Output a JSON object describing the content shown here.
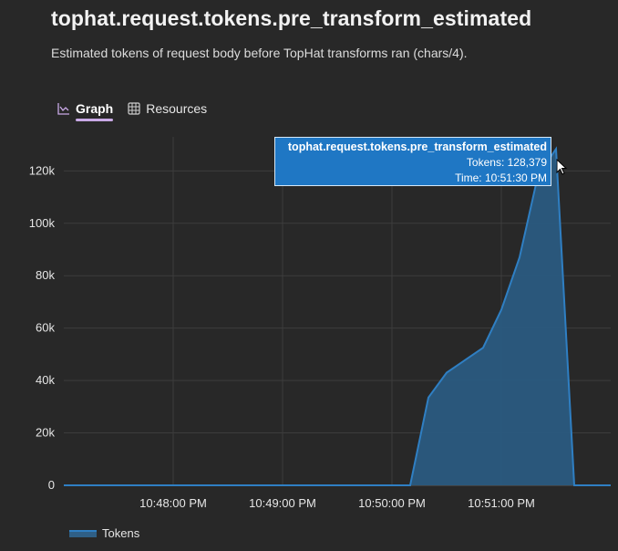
{
  "page": {
    "title": "tophat.request.tokens.pre_transform_estimated",
    "description": "Estimated tokens of request body before TopHat transforms ran (chars/4)."
  },
  "tabs": [
    {
      "label": "Graph",
      "icon": "graph-icon",
      "active": true
    },
    {
      "label": "Resources",
      "icon": "grid-icon",
      "active": false
    }
  ],
  "tooltip": {
    "title": "tophat.request.tokens.pre_transform_estimated",
    "value_line": "Tokens: 128,379",
    "time_line": "Time: 10:51:30 PM"
  },
  "colors": {
    "accent": "#c9a9e6",
    "series_line": "#2f7fc3",
    "series_fill": "#2a5a80",
    "tooltip_bg": "#1f77c4",
    "background": "#282828"
  },
  "chart_data": {
    "type": "area",
    "series": [
      {
        "name": "Tokens",
        "x": [
          "10:47:00 PM",
          "10:50:10 PM",
          "10:50:20 PM",
          "10:50:30 PM",
          "10:50:50 PM",
          "10:51:00 PM",
          "10:51:10 PM",
          "10:51:20 PM",
          "10:51:30 PM",
          "10:51:40 PM",
          "10:52:00 PM"
        ],
        "values": [
          0,
          0,
          33500,
          43000,
          52500,
          67000,
          87000,
          118000,
          128379,
          0,
          0
        ]
      }
    ],
    "x_ticks": [
      "10:48:00 PM",
      "10:49:00 PM",
      "10:50:00 PM",
      "10:51:00 PM"
    ],
    "y_ticks": [
      "0",
      "20k",
      "40k",
      "60k",
      "80k",
      "100k",
      "120k"
    ],
    "ylim": [
      0,
      133000
    ],
    "xlim": [
      "10:47:00 PM",
      "10:52:00 PM"
    ],
    "grid": true,
    "legend_position": "bottom-left"
  }
}
